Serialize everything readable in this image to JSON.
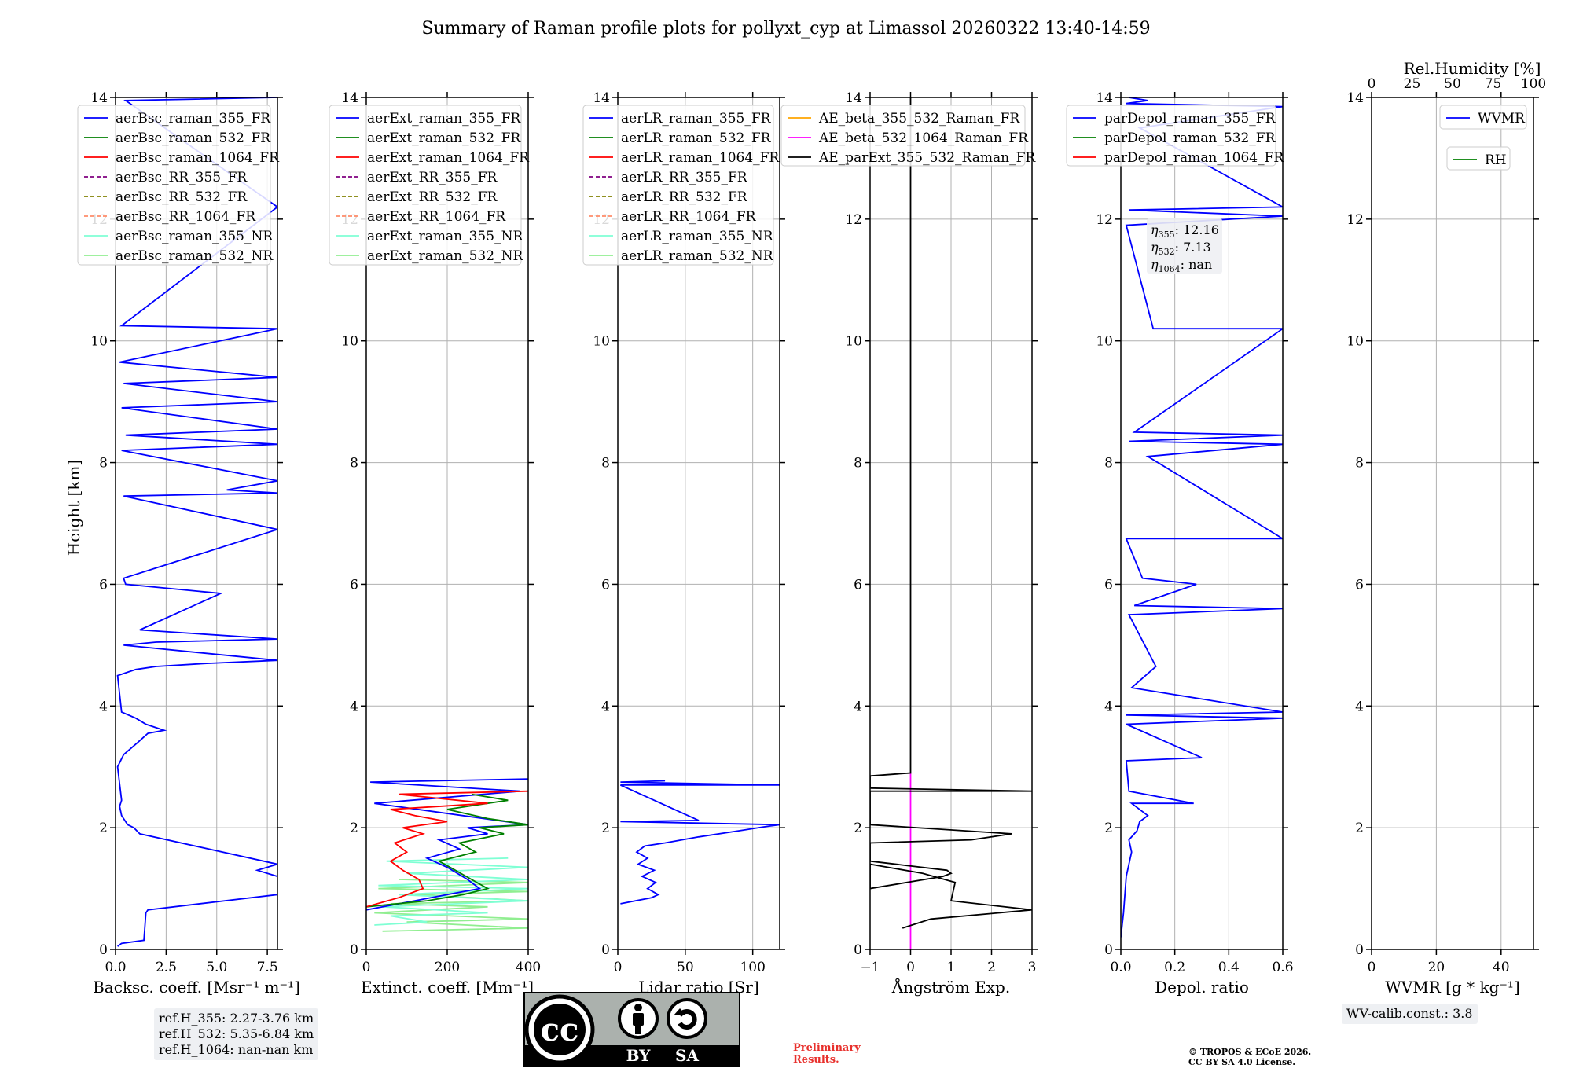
{
  "title": "Summary of Raman profile plots for pollyxt_cyp at Limassol 20260322 13:40-14:59",
  "colors": {
    "blue": "#0000ff",
    "green": "#007f00",
    "red": "#ff0000",
    "purple": "#800080",
    "olive": "#808000",
    "salmon": "#ff8c69",
    "cyan": "#7fffd4",
    "lightgreen": "#90ee90",
    "orange": "#ffa500",
    "magenta": "#ff00ff",
    "black": "#000000"
  },
  "chart_data": [
    {
      "id": "bsc",
      "type": "line",
      "xlabel": "Backsc. coeff. [Msr⁻¹ m⁻¹]",
      "ylabel": "Height [km]",
      "xlim": [
        0,
        8
      ],
      "ylim": [
        0,
        14
      ],
      "xticks": [
        0,
        2.5,
        5,
        7.5
      ],
      "xticklabels": [
        "0.0",
        "2.5",
        "5.0",
        "7.5"
      ],
      "yticks": [
        0,
        2,
        4,
        6,
        8,
        10,
        12,
        14
      ],
      "legend": [
        "aerBsc_raman_355_FR",
        "aerBsc_raman_532_FR",
        "aerBsc_raman_1064_FR",
        "aerBsc_RR_355_FR",
        "aerBsc_RR_532_FR",
        "aerBsc_RR_1064_FR",
        "aerBsc_raman_355_NR",
        "aerBsc_raman_532_NR"
      ],
      "series": [
        {
          "name": "aerBsc_raman_355_FR",
          "color": "blue",
          "x": [
            0.1,
            0.3,
            1.4,
            1.5,
            1.6,
            8,
            8,
            7,
            8,
            1.2,
            0.9,
            0.6,
            0.3,
            0.2,
            0.3,
            0.1,
            0.4,
            1.1,
            1.6,
            2.4,
            1.5,
            1.0,
            0.3,
            0.1,
            1.0,
            2.0,
            4.5,
            8,
            0.4,
            2.0,
            8,
            1.2,
            5.2,
            0.5,
            0.4,
            8,
            0.4,
            8,
            5.5,
            8,
            0.3,
            8,
            0.5,
            8,
            0.3,
            8,
            0.4,
            8,
            0.2,
            8,
            0.3,
            8,
            0.5,
            8
          ],
          "y": [
            0.05,
            0.1,
            0.15,
            0.6,
            0.65,
            0.9,
            1.2,
            1.3,
            1.4,
            1.9,
            2.0,
            2.05,
            2.2,
            2.35,
            2.45,
            3.0,
            3.2,
            3.4,
            3.55,
            3.6,
            3.7,
            3.8,
            3.9,
            4.5,
            4.6,
            4.65,
            4.7,
            4.75,
            5.0,
            5.05,
            5.1,
            5.25,
            5.85,
            6.0,
            6.1,
            6.9,
            7.45,
            7.5,
            7.55,
            7.7,
            8.2,
            8.3,
            8.45,
            8.55,
            8.9,
            9.0,
            9.3,
            9.4,
            9.65,
            10.2,
            10.25,
            12.2,
            13.95,
            14.0
          ]
        }
      ],
      "textbox": [
        "ref.H_355: 2.27-3.76 km",
        "ref.H_532: 5.35-6.84 km",
        "ref.H_1064: nan-nan km"
      ]
    },
    {
      "id": "ext",
      "type": "line",
      "xlabel": "Extinct. coeff. [Mm⁻¹]",
      "ylabel": "",
      "xlim": [
        0,
        400
      ],
      "ylim": [
        0,
        14
      ],
      "xticks": [
        0,
        200,
        400
      ],
      "xticklabels": [
        "0",
        "200",
        "400"
      ],
      "yticks": [
        0,
        2,
        4,
        6,
        8,
        10,
        12,
        14
      ],
      "legend": [
        "aerExt_raman_355_FR",
        "aerExt_raman_532_FR",
        "aerExt_raman_1064_FR",
        "aerExt_RR_355_FR",
        "aerExt_RR_532_FR",
        "aerExt_RR_1064_FR",
        "aerExt_raman_355_NR",
        "aerExt_raman_532_NR"
      ],
      "series": [
        {
          "name": "aerExt_raman_532_NR",
          "color": "lightgreen",
          "x": [
            40,
            400,
            100,
            400,
            20,
            300,
            60,
            400,
            120,
            400,
            30,
            400,
            80
          ],
          "y": [
            0.3,
            0.35,
            0.45,
            0.5,
            0.6,
            0.7,
            0.75,
            0.8,
            0.9,
            0.95,
            1.0,
            1.1,
            1.15
          ]
        },
        {
          "name": "aerExt_raman_355_NR",
          "color": "cyan",
          "x": [
            20,
            150,
            60,
            300,
            40,
            400,
            80,
            400,
            30,
            400,
            100,
            400,
            50,
            350
          ],
          "y": [
            0.4,
            0.45,
            0.55,
            0.6,
            0.7,
            0.8,
            0.9,
            1.0,
            1.05,
            1.15,
            1.25,
            1.35,
            1.45,
            1.5
          ]
        },
        {
          "name": "aerExt_raman_355_FR",
          "color": "blue",
          "x": [
            0,
            120,
            200,
            280,
            250,
            200,
            150,
            230,
            180,
            300,
            250,
            400,
            20,
            380,
            10,
            400
          ],
          "y": [
            0.65,
            0.8,
            0.9,
            1.0,
            1.15,
            1.35,
            1.5,
            1.65,
            1.8,
            1.9,
            2.0,
            2.05,
            2.4,
            2.6,
            2.75,
            2.8
          ]
        },
        {
          "name": "aerExt_raman_532_FR",
          "color": "green",
          "x": [
            0,
            150,
            240,
            300,
            260,
            220,
            180,
            270,
            230,
            340,
            280,
            400,
            300,
            200,
            350,
            260
          ],
          "y": [
            0.7,
            0.8,
            0.9,
            1.0,
            1.15,
            1.3,
            1.45,
            1.6,
            1.75,
            1.9,
            2.0,
            2.05,
            2.15,
            2.3,
            2.45,
            2.55
          ]
        },
        {
          "name": "aerExt_raman_1064_FR",
          "color": "red",
          "x": [
            0,
            80,
            140,
            130,
            90,
            60,
            100,
            70,
            140,
            90,
            200,
            120,
            60,
            300,
            80,
            400
          ],
          "y": [
            0.7,
            0.85,
            1.0,
            1.15,
            1.3,
            1.45,
            1.6,
            1.75,
            1.9,
            2.0,
            2.1,
            2.2,
            2.3,
            2.4,
            2.55,
            2.6
          ]
        }
      ]
    },
    {
      "id": "lr",
      "type": "line",
      "xlabel": "Lidar ratio [Sr]",
      "ylabel": "",
      "xlim": [
        0,
        120
      ],
      "ylim": [
        0,
        14
      ],
      "xticks": [
        0,
        50,
        100
      ],
      "xticklabels": [
        "0",
        "50",
        "100"
      ],
      "yticks": [
        0,
        2,
        4,
        6,
        8,
        10,
        12,
        14
      ],
      "legend": [
        "aerLR_raman_355_FR",
        "aerLR_raman_532_FR",
        "aerLR_raman_1064_FR",
        "aerLR_RR_355_FR",
        "aerLR_RR_532_FR",
        "aerLR_RR_1064_FR",
        "aerLR_raman_355_NR",
        "aerLR_raman_532_NR"
      ],
      "series": [
        {
          "name": "aerLR_raman_355_FR",
          "color": "blue",
          "x": [
            2,
            25,
            30,
            22,
            28,
            18,
            27,
            15,
            22,
            14,
            20,
            35,
            60,
            90,
            110,
            120,
            2,
            60,
            2,
            120,
            2,
            35
          ],
          "y": [
            0.75,
            0.85,
            0.9,
            1.0,
            1.1,
            1.2,
            1.3,
            1.4,
            1.5,
            1.6,
            1.7,
            1.75,
            1.85,
            1.95,
            2.02,
            2.05,
            2.1,
            2.12,
            2.7,
            2.7,
            2.75,
            2.77
          ]
        }
      ]
    },
    {
      "id": "ae",
      "type": "line",
      "xlabel": "Ångström Exp.",
      "ylabel": "",
      "xlim": [
        -1,
        3
      ],
      "ylim": [
        0,
        14
      ],
      "xticks": [
        -1,
        0,
        1,
        2,
        3
      ],
      "xticklabels": [
        "−1",
        "0",
        "1",
        "2",
        "3"
      ],
      "yticks": [
        0,
        2,
        4,
        6,
        8,
        10,
        12,
        14
      ],
      "legend": [
        "AE_beta_355_532_Raman_FR",
        "AE_beta_532_1064_Raman_FR",
        "AE_parExt_355_532_Raman_FR"
      ],
      "series": [
        {
          "name": "AE_beta_532_1064_Raman_FR",
          "color": "magenta",
          "x": [
            0,
            0
          ],
          "y": [
            0.0,
            2.9
          ]
        },
        {
          "name": "AE_parExt_355_532_Raman_FR",
          "color": "black",
          "x": [
            -0.2,
            0.5,
            3.0,
            1.0,
            1.1,
            0.3,
            -1.0,
            -1.0,
            -1.0,
            0.8,
            1.0,
            0.9,
            -1.0,
            -1.0,
            -1.0,
            1.5,
            2.5,
            -1.0,
            -1.0,
            -1.0,
            3.0,
            -1.0,
            -1.0,
            0.0,
            0.0,
            0.0
          ],
          "y": [
            0.35,
            0.5,
            0.65,
            0.8,
            1.1,
            1.25,
            1.4,
            1.4,
            1.0,
            1.2,
            1.25,
            1.3,
            1.45,
            1.7,
            1.75,
            1.8,
            1.9,
            2.05,
            2.05,
            2.6,
            2.6,
            2.65,
            2.85,
            2.9,
            7,
            14
          ]
        }
      ]
    },
    {
      "id": "depol",
      "type": "line",
      "xlabel": "Depol. ratio",
      "ylabel": "",
      "xlim": [
        0,
        0.6
      ],
      "ylim": [
        0,
        14
      ],
      "xticks": [
        0,
        0.2,
        0.4,
        0.6
      ],
      "xticklabels": [
        "0.0",
        "0.2",
        "0.4",
        "0.6"
      ],
      "yticks": [
        0,
        2,
        4,
        6,
        8,
        10,
        12,
        14
      ],
      "legend": [
        "parDepol_raman_355_FR",
        "parDepol_raman_532_FR",
        "parDepol_raman_1064_FR"
      ],
      "annotation": [
        {
          "sym": "η",
          "sub": "355",
          "value": ": 12.16"
        },
        {
          "sym": "η",
          "sub": "532",
          "value": ": 7.13"
        },
        {
          "sym": "η",
          "sub": "1064",
          "value": ": nan"
        }
      ],
      "series": [
        {
          "name": "parDepol_raman_355_FR",
          "color": "blue",
          "x": [
            0.0,
            0.01,
            0.02,
            0.04,
            0.03,
            0.06,
            0.07,
            0.1,
            0.04,
            0.27,
            0.03,
            0.02,
            0.3,
            0.02,
            0.6,
            0.02,
            0.6,
            0.04,
            0.13,
            0.03,
            0.6,
            0.05,
            0.28,
            0.08,
            0.02,
            0.6,
            0.1,
            0.6,
            0.03,
            0.6,
            0.05,
            0.6,
            0.12,
            0.02,
            0.6,
            0.03,
            0.6,
            0.07,
            0.6,
            0.02,
            0.1,
            0.03
          ],
          "y": [
            0.2,
            0.6,
            1.2,
            1.6,
            1.8,
            1.95,
            2.1,
            2.2,
            2.4,
            2.4,
            2.6,
            3.1,
            3.15,
            3.7,
            3.8,
            3.85,
            3.9,
            4.3,
            4.65,
            5.5,
            5.6,
            5.65,
            6.0,
            6.1,
            6.75,
            6.75,
            8.1,
            8.3,
            8.35,
            8.45,
            8.5,
            10.2,
            10.2,
            11.9,
            12.05,
            12.15,
            12.2,
            13.5,
            13.85,
            13.9,
            13.95,
            14.0
          ]
        }
      ]
    },
    {
      "id": "wv",
      "type": "line",
      "xlabel": "WVMR [g * kg⁻¹]",
      "ylabel": "",
      "xlim": [
        0,
        50
      ],
      "ylim": [
        0,
        14
      ],
      "xticks": [
        0,
        20,
        40
      ],
      "xticklabels": [
        "0",
        "20",
        "40"
      ],
      "yticks": [
        0,
        2,
        4,
        6,
        8,
        10,
        12,
        14
      ],
      "top_axis": {
        "label": "Rel.Humidity [%]",
        "xlim": [
          0,
          100
        ],
        "xticks": [
          0,
          25,
          50,
          75,
          100
        ],
        "xticklabels": [
          "0",
          "25",
          "50",
          "75",
          "100"
        ]
      },
      "legend": [
        "WVMR"
      ],
      "legend2": [
        "RH"
      ],
      "series": [],
      "textbox": [
        "WV-calib.const.: 3.8"
      ]
    }
  ],
  "license_logo": {
    "cc": "cc",
    "by": "BY",
    "sa": "SA"
  },
  "notes": {
    "preliminary": [
      "Preliminary",
      "Results."
    ],
    "copyright": [
      "© TROPOS & ECoE 2026.",
      "CC BY SA 4.0 License."
    ]
  }
}
